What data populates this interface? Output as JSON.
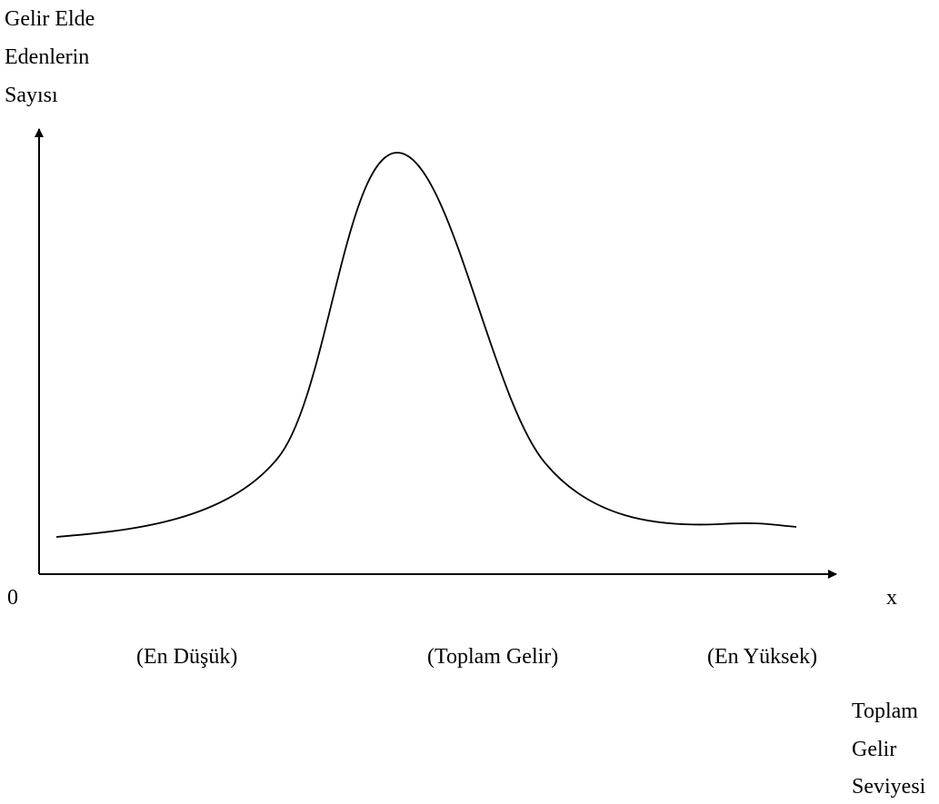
{
  "y_axis_label": [
    "Gelir Elde",
    "Edenlerin",
    "Sayısı"
  ],
  "origin_label": "0",
  "x_axis_end_label": "x",
  "x_positions": [
    "(En Düşük)",
    "(Toplam Gelir)",
    "(En Yüksek)"
  ],
  "x_axis_label": [
    "Toplam",
    "Gelir",
    "Seviyesi"
  ]
}
